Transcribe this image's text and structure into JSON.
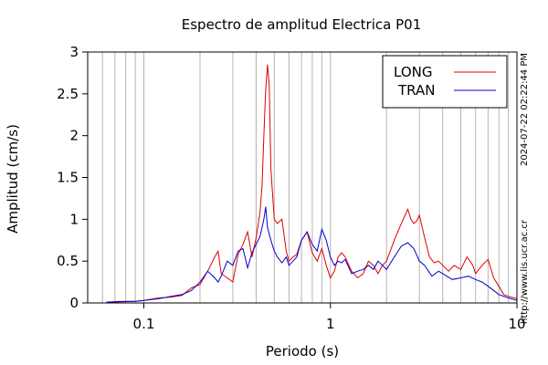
{
  "chart_data": {
    "type": "line",
    "title": "Espectro de amplitud Electrica P01",
    "xlabel": "Periodo (s)",
    "ylabel": "Amplitud (cm/s)",
    "xscale": "log",
    "xlim": [
      0.05,
      10
    ],
    "ylim": [
      0,
      3
    ],
    "x_ticks": [
      0.1,
      1,
      10
    ],
    "x_tick_labels": [
      "0.1",
      "1",
      "10"
    ],
    "y_ticks": [
      0,
      0.5,
      1,
      1.5,
      2,
      2.5,
      3
    ],
    "y_tick_labels": [
      "0",
      "0.5",
      "1",
      "1.5",
      "2",
      "2.5",
      "3"
    ],
    "grid": "vertical, log-spaced",
    "legend_position": "top-right",
    "side_annotations": [
      "2024-07-22 02:22:44 PM",
      "http://www.lis.ucr.ac.cr"
    ],
    "colors": {
      "LONG": "#e00000",
      "TRAN": "#0000cc"
    },
    "series": [
      {
        "name": "LONG",
        "x": [
          0.063,
          0.07,
          0.08,
          0.09,
          0.1,
          0.12,
          0.14,
          0.16,
          0.18,
          0.2,
          0.22,
          0.24,
          0.25,
          0.26,
          0.28,
          0.3,
          0.32,
          0.34,
          0.36,
          0.38,
          0.4,
          0.42,
          0.43,
          0.44,
          0.45,
          0.46,
          0.47,
          0.48,
          0.5,
          0.52,
          0.55,
          0.58,
          0.6,
          0.63,
          0.66,
          0.7,
          0.75,
          0.8,
          0.85,
          0.9,
          0.95,
          1.0,
          1.05,
          1.1,
          1.15,
          1.2,
          1.3,
          1.4,
          1.5,
          1.6,
          1.7,
          1.8,
          1.9,
          2.0,
          2.2,
          2.4,
          2.6,
          2.7,
          2.8,
          2.9,
          3.0,
          3.2,
          3.4,
          3.6,
          3.8,
          4.0,
          4.3,
          4.6,
          5.0,
          5.4,
          5.6,
          5.8,
          6.0,
          6.5,
          7.0,
          7.5,
          8.0,
          8.5,
          9.0,
          10.0
        ],
        "y": [
          0.01,
          0.01,
          0.015,
          0.02,
          0.03,
          0.06,
          0.07,
          0.09,
          0.18,
          0.22,
          0.38,
          0.55,
          0.62,
          0.35,
          0.3,
          0.25,
          0.58,
          0.7,
          0.85,
          0.55,
          0.78,
          1.1,
          1.4,
          2.0,
          2.55,
          2.85,
          2.6,
          1.6,
          1.0,
          0.95,
          1.0,
          0.62,
          0.5,
          0.55,
          0.58,
          0.75,
          0.85,
          0.6,
          0.5,
          0.65,
          0.45,
          0.3,
          0.38,
          0.55,
          0.6,
          0.55,
          0.38,
          0.3,
          0.35,
          0.5,
          0.45,
          0.35,
          0.45,
          0.5,
          0.75,
          0.95,
          1.12,
          1.0,
          0.95,
          0.98,
          1.05,
          0.78,
          0.55,
          0.48,
          0.5,
          0.45,
          0.38,
          0.45,
          0.4,
          0.55,
          0.5,
          0.45,
          0.35,
          0.45,
          0.52,
          0.3,
          0.2,
          0.1,
          0.08,
          0.05
        ]
      },
      {
        "name": "TRAN",
        "x": [
          0.063,
          0.07,
          0.08,
          0.09,
          0.1,
          0.12,
          0.14,
          0.16,
          0.18,
          0.2,
          0.22,
          0.24,
          0.25,
          0.26,
          0.28,
          0.3,
          0.32,
          0.34,
          0.36,
          0.38,
          0.4,
          0.42,
          0.44,
          0.45,
          0.46,
          0.48,
          0.5,
          0.52,
          0.55,
          0.58,
          0.6,
          0.63,
          0.66,
          0.7,
          0.75,
          0.8,
          0.85,
          0.9,
          0.95,
          1.0,
          1.05,
          1.1,
          1.15,
          1.2,
          1.3,
          1.4,
          1.5,
          1.6,
          1.7,
          1.8,
          1.9,
          2.0,
          2.2,
          2.4,
          2.6,
          2.8,
          3.0,
          3.2,
          3.5,
          3.8,
          4.0,
          4.5,
          5.0,
          5.5,
          6.0,
          6.5,
          7.0,
          7.5,
          8.0,
          9.0,
          10.0
        ],
        "y": [
          0.01,
          0.015,
          0.02,
          0.02,
          0.03,
          0.05,
          0.08,
          0.1,
          0.15,
          0.25,
          0.38,
          0.3,
          0.25,
          0.32,
          0.5,
          0.45,
          0.62,
          0.65,
          0.42,
          0.6,
          0.7,
          0.8,
          1.0,
          1.15,
          0.9,
          0.75,
          0.62,
          0.55,
          0.48,
          0.55,
          0.45,
          0.5,
          0.55,
          0.75,
          0.85,
          0.7,
          0.62,
          0.88,
          0.75,
          0.55,
          0.45,
          0.5,
          0.48,
          0.52,
          0.35,
          0.38,
          0.4,
          0.45,
          0.4,
          0.5,
          0.45,
          0.4,
          0.55,
          0.68,
          0.72,
          0.65,
          0.5,
          0.45,
          0.32,
          0.38,
          0.35,
          0.28,
          0.3,
          0.32,
          0.28,
          0.25,
          0.2,
          0.15,
          0.1,
          0.06,
          0.03
        ]
      }
    ]
  }
}
